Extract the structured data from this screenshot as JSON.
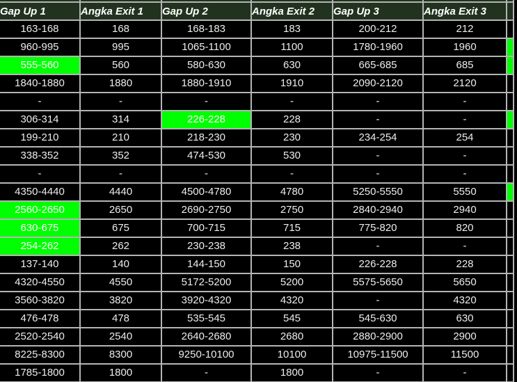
{
  "table": {
    "columns": [
      {
        "label": "Gap Up 1"
      },
      {
        "label": "Angka Exit 1"
      },
      {
        "label": "Gap Up 2"
      },
      {
        "label": "Angka Exit 2"
      },
      {
        "label": "Gap Up 3"
      },
      {
        "label": "Angka Exit 3"
      }
    ],
    "rows": [
      {
        "cells": [
          "163-168",
          "168",
          "168-183",
          "183",
          "200-212",
          "212"
        ],
        "highlights": [],
        "right_edge_green": false
      },
      {
        "cells": [
          "960-995",
          "995",
          "1065-1100",
          "1100",
          "1780-1960",
          "1960"
        ],
        "highlights": [],
        "right_edge_green": true
      },
      {
        "cells": [
          "555-560",
          "560",
          "580-630",
          "630",
          "665-685",
          "685"
        ],
        "highlights": [
          0
        ],
        "right_edge_green": true
      },
      {
        "cells": [
          "1840-1880",
          "1880",
          "1880-1910",
          "1910",
          "2090-2120",
          "2120"
        ],
        "highlights": [],
        "right_edge_green": false
      },
      {
        "cells": [
          "-",
          "-",
          "-",
          "-",
          "-",
          "-"
        ],
        "highlights": [],
        "right_edge_green": false
      },
      {
        "cells": [
          "306-314",
          "314",
          "226-228",
          "228",
          "-",
          "-"
        ],
        "highlights": [
          2
        ],
        "right_edge_green": true
      },
      {
        "cells": [
          "199-210",
          "210",
          "218-230",
          "230",
          "234-254",
          "254"
        ],
        "highlights": [],
        "right_edge_green": false
      },
      {
        "cells": [
          "338-352",
          "352",
          "474-530",
          "530",
          "-",
          "-"
        ],
        "highlights": [],
        "right_edge_green": false
      },
      {
        "cells": [
          "-",
          "-",
          "-",
          "-",
          "-",
          "-"
        ],
        "highlights": [],
        "right_edge_green": false
      },
      {
        "cells": [
          "4350-4440",
          "4440",
          "4500-4780",
          "4780",
          "5250-5550",
          "5550"
        ],
        "highlights": [],
        "right_edge_green": true
      },
      {
        "cells": [
          "2560-2650",
          "2650",
          "2690-2750",
          "2750",
          "2840-2940",
          "2940"
        ],
        "highlights": [
          0
        ],
        "right_edge_green": false
      },
      {
        "cells": [
          "630-675",
          "675",
          "700-715",
          "715",
          "775-820",
          "820"
        ],
        "highlights": [
          0
        ],
        "right_edge_green": false
      },
      {
        "cells": [
          "254-262",
          "262",
          "230-238",
          "238",
          "-",
          "-"
        ],
        "highlights": [
          0
        ],
        "right_edge_green": false
      },
      {
        "cells": [
          "137-140",
          "140",
          "144-150",
          "150",
          "226-228",
          "228"
        ],
        "highlights": [],
        "right_edge_green": false
      },
      {
        "cells": [
          "4320-4550",
          "4550",
          "5172-5200",
          "5200",
          "5575-5650",
          "5650"
        ],
        "highlights": [],
        "right_edge_green": false
      },
      {
        "cells": [
          "3560-3820",
          "3820",
          "3920-4320",
          "4320",
          "-",
          "4320"
        ],
        "highlights": [],
        "right_edge_green": false
      },
      {
        "cells": [
          "476-478",
          "478",
          "535-545",
          "545",
          "545-630",
          "630"
        ],
        "highlights": [],
        "right_edge_green": false
      },
      {
        "cells": [
          "2520-2540",
          "2540",
          "2640-2680",
          "2680",
          "2880-2900",
          "2900"
        ],
        "highlights": [],
        "right_edge_green": false
      },
      {
        "cells": [
          "8225-8300",
          "8300",
          "9250-10100",
          "10100",
          "10975-11500",
          "11500"
        ],
        "highlights": [],
        "right_edge_green": false
      },
      {
        "cells": [
          "1785-1800",
          "1800",
          "-",
          "1800",
          "-",
          "-"
        ],
        "highlights": [],
        "right_edge_green": false
      }
    ],
    "colors": {
      "header_bg": "#21331f",
      "header_text": "#ffffff",
      "cell_bg": "#000000",
      "cell_text": "#ededed",
      "grid": "#b5b5b5",
      "highlight": "#00ff00"
    }
  }
}
